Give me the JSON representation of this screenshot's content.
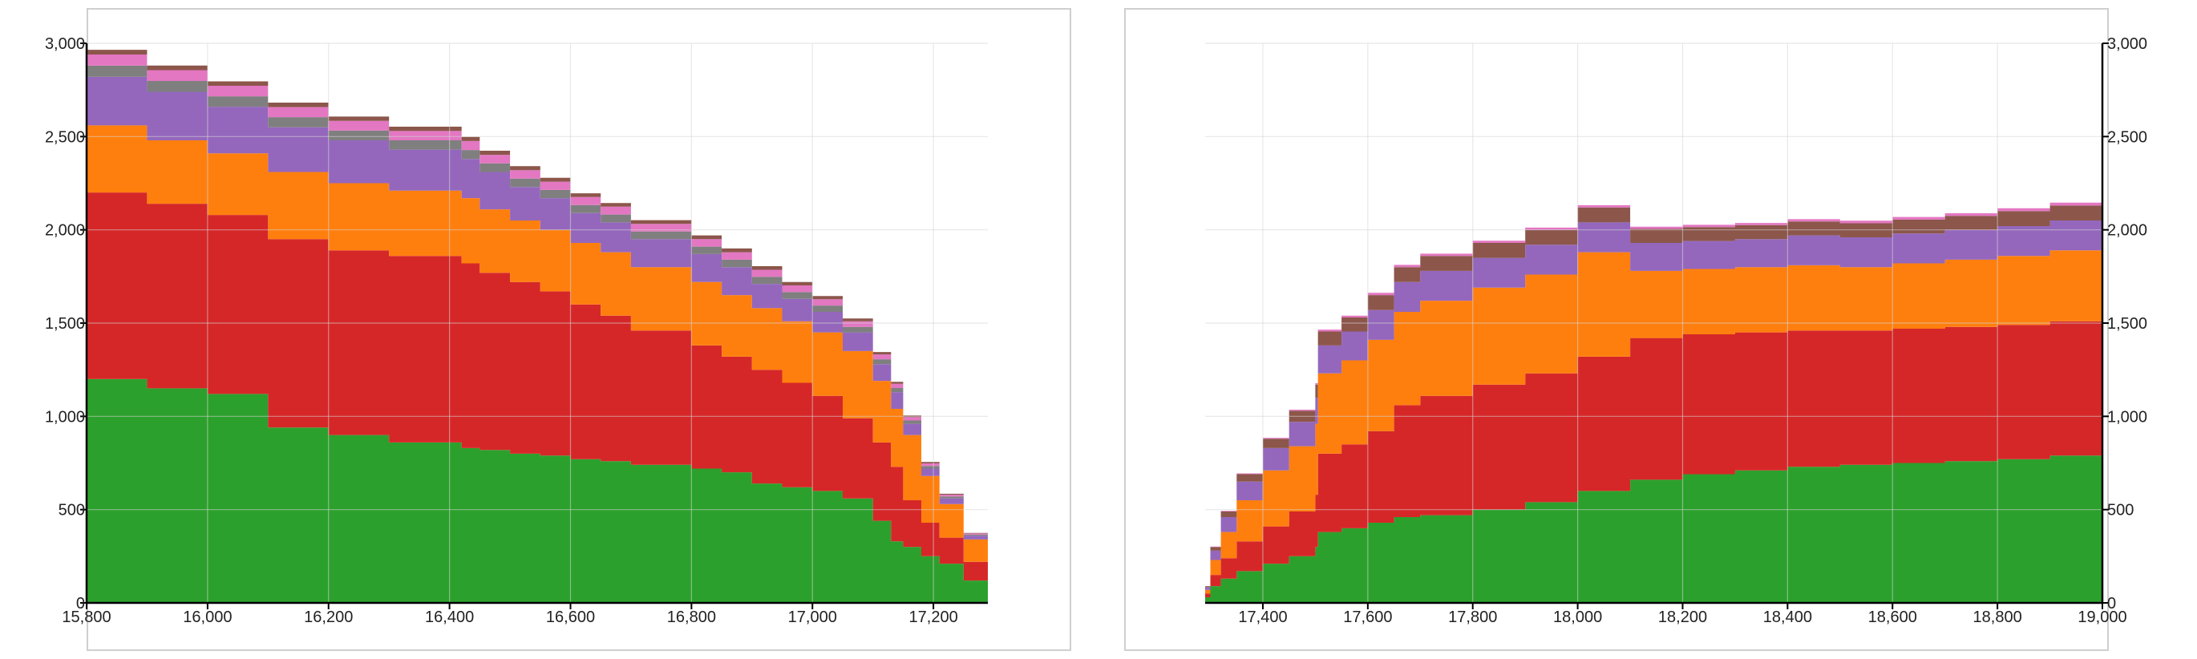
{
  "chart_data": [
    {
      "type": "area",
      "step": true,
      "ylim": [
        0,
        3000
      ],
      "xlim": [
        15800,
        17290
      ],
      "y_axis_side": "left",
      "x_ticks": [
        15800,
        16000,
        16200,
        16400,
        16600,
        16800,
        17000,
        17200
      ],
      "x_tick_labels": [
        "15,800",
        "16,000",
        "16,200",
        "16,400",
        "16,600",
        "16,800",
        "17,000",
        "17,200"
      ],
      "y_ticks": [
        0,
        500,
        1000,
        1500,
        2000,
        2500,
        3000
      ],
      "y_tick_labels": [
        "0",
        "500",
        "1,000",
        "1,500",
        "2,000",
        "2,500",
        "3,000"
      ],
      "grid": true,
      "x": [
        15800,
        15805,
        15900,
        16000,
        16100,
        16200,
        16300,
        16420,
        16450,
        16500,
        16550,
        16600,
        16650,
        16700,
        16800,
        16850,
        16900,
        16950,
        17000,
        17050,
        17100,
        17130,
        17150,
        17180,
        17210,
        17250,
        17290
      ],
      "series": [
        {
          "color": "#2ca02c",
          "values": [
            1200,
            1200,
            1150,
            1120,
            940,
            900,
            860,
            830,
            820,
            800,
            790,
            770,
            760,
            740,
            720,
            700,
            640,
            620,
            600,
            560,
            440,
            330,
            300,
            250,
            210,
            120,
            20
          ]
        },
        {
          "color": "#d62728",
          "values": [
            1000,
            1000,
            990,
            960,
            1010,
            990,
            1000,
            990,
            950,
            920,
            880,
            830,
            780,
            720,
            660,
            620,
            610,
            560,
            510,
            430,
            420,
            400,
            250,
            180,
            140,
            100,
            10
          ]
        },
        {
          "color": "#ff7f0e",
          "values": [
            360,
            360,
            340,
            330,
            360,
            360,
            350,
            350,
            340,
            330,
            330,
            330,
            340,
            340,
            340,
            330,
            330,
            330,
            340,
            360,
            330,
            310,
            350,
            250,
            180,
            120,
            10
          ]
        },
        {
          "color": "#9467bd",
          "values": [
            260,
            260,
            260,
            250,
            240,
            230,
            220,
            210,
            200,
            180,
            170,
            160,
            160,
            150,
            150,
            150,
            130,
            120,
            110,
            100,
            90,
            90,
            60,
            40,
            30,
            20,
            5
          ]
        },
        {
          "color": "#7f7f7f",
          "values": [
            60,
            60,
            58,
            56,
            54,
            52,
            50,
            48,
            46,
            45,
            44,
            43,
            42,
            41,
            40,
            40,
            38,
            36,
            34,
            30,
            26,
            22,
            18,
            14,
            10,
            6,
            2
          ]
        },
        {
          "color": "#e377c2",
          "values": [
            60,
            60,
            58,
            56,
            54,
            52,
            50,
            48,
            46,
            45,
            44,
            43,
            42,
            41,
            40,
            40,
            38,
            36,
            34,
            30,
            26,
            22,
            18,
            14,
            10,
            6,
            2
          ]
        },
        {
          "color": "#8c564b",
          "values": [
            25,
            25,
            25,
            24,
            24,
            23,
            23,
            22,
            22,
            21,
            21,
            20,
            20,
            20,
            20,
            20,
            19,
            18,
            17,
            15,
            13,
            11,
            9,
            7,
            5,
            3,
            1
          ]
        }
      ]
    },
    {
      "type": "area",
      "step": true,
      "ylim": [
        0,
        3000
      ],
      "xlim": [
        17290,
        19000
      ],
      "y_axis_side": "right",
      "x_ticks": [
        17400,
        17600,
        17800,
        18000,
        18200,
        18400,
        18600,
        18800,
        19000
      ],
      "x_tick_labels": [
        "17,400",
        "17,600",
        "17,800",
        "18,000",
        "18,200",
        "18,400",
        "18,600",
        "18,800",
        "19,000"
      ],
      "y_ticks": [
        0,
        500,
        1000,
        1500,
        2000,
        2500,
        3000
      ],
      "y_tick_labels": [
        "0",
        "500",
        "1,000",
        "1,500",
        "2,000",
        "2,500",
        "3,000"
      ],
      "grid": true,
      "x": [
        17290,
        17300,
        17320,
        17350,
        17400,
        17450,
        17500,
        17505,
        17550,
        17600,
        17650,
        17700,
        17800,
        17900,
        18000,
        18100,
        18200,
        18300,
        18400,
        18500,
        18600,
        18700,
        18800,
        18900,
        19000
      ],
      "series": [
        {
          "color": "#2ca02c",
          "values": [
            30,
            90,
            130,
            170,
            210,
            250,
            300,
            380,
            400,
            430,
            460,
            470,
            500,
            540,
            600,
            660,
            690,
            710,
            730,
            740,
            750,
            760,
            770,
            790,
            800
          ]
        },
        {
          "color": "#d62728",
          "values": [
            20,
            60,
            110,
            160,
            200,
            240,
            280,
            420,
            450,
            490,
            600,
            640,
            670,
            690,
            720,
            760,
            750,
            740,
            730,
            720,
            720,
            720,
            720,
            720,
            720
          ]
        },
        {
          "color": "#ff7f0e",
          "values": [
            20,
            80,
            140,
            220,
            300,
            350,
            380,
            430,
            450,
            490,
            500,
            510,
            520,
            530,
            560,
            360,
            350,
            350,
            350,
            340,
            350,
            360,
            370,
            380,
            390
          ]
        },
        {
          "color": "#9467bd",
          "values": [
            15,
            50,
            80,
            100,
            120,
            130,
            140,
            150,
            155,
            160,
            160,
            160,
            160,
            160,
            160,
            150,
            150,
            150,
            160,
            160,
            160,
            160,
            160,
            160,
            170
          ]
        },
        {
          "color": "#8c564b",
          "values": [
            5,
            20,
            30,
            40,
            50,
            60,
            70,
            75,
            75,
            80,
            80,
            80,
            80,
            80,
            80,
            75,
            75,
            75,
            75,
            75,
            75,
            75,
            80,
            80,
            85
          ]
        },
        {
          "color": "#e377c2",
          "values": [
            0,
            2,
            3,
            4,
            5,
            6,
            8,
            10,
            10,
            12,
            12,
            12,
            12,
            12,
            12,
            12,
            12,
            12,
            12,
            14,
            14,
            14,
            16,
            16,
            18
          ]
        }
      ]
    }
  ]
}
